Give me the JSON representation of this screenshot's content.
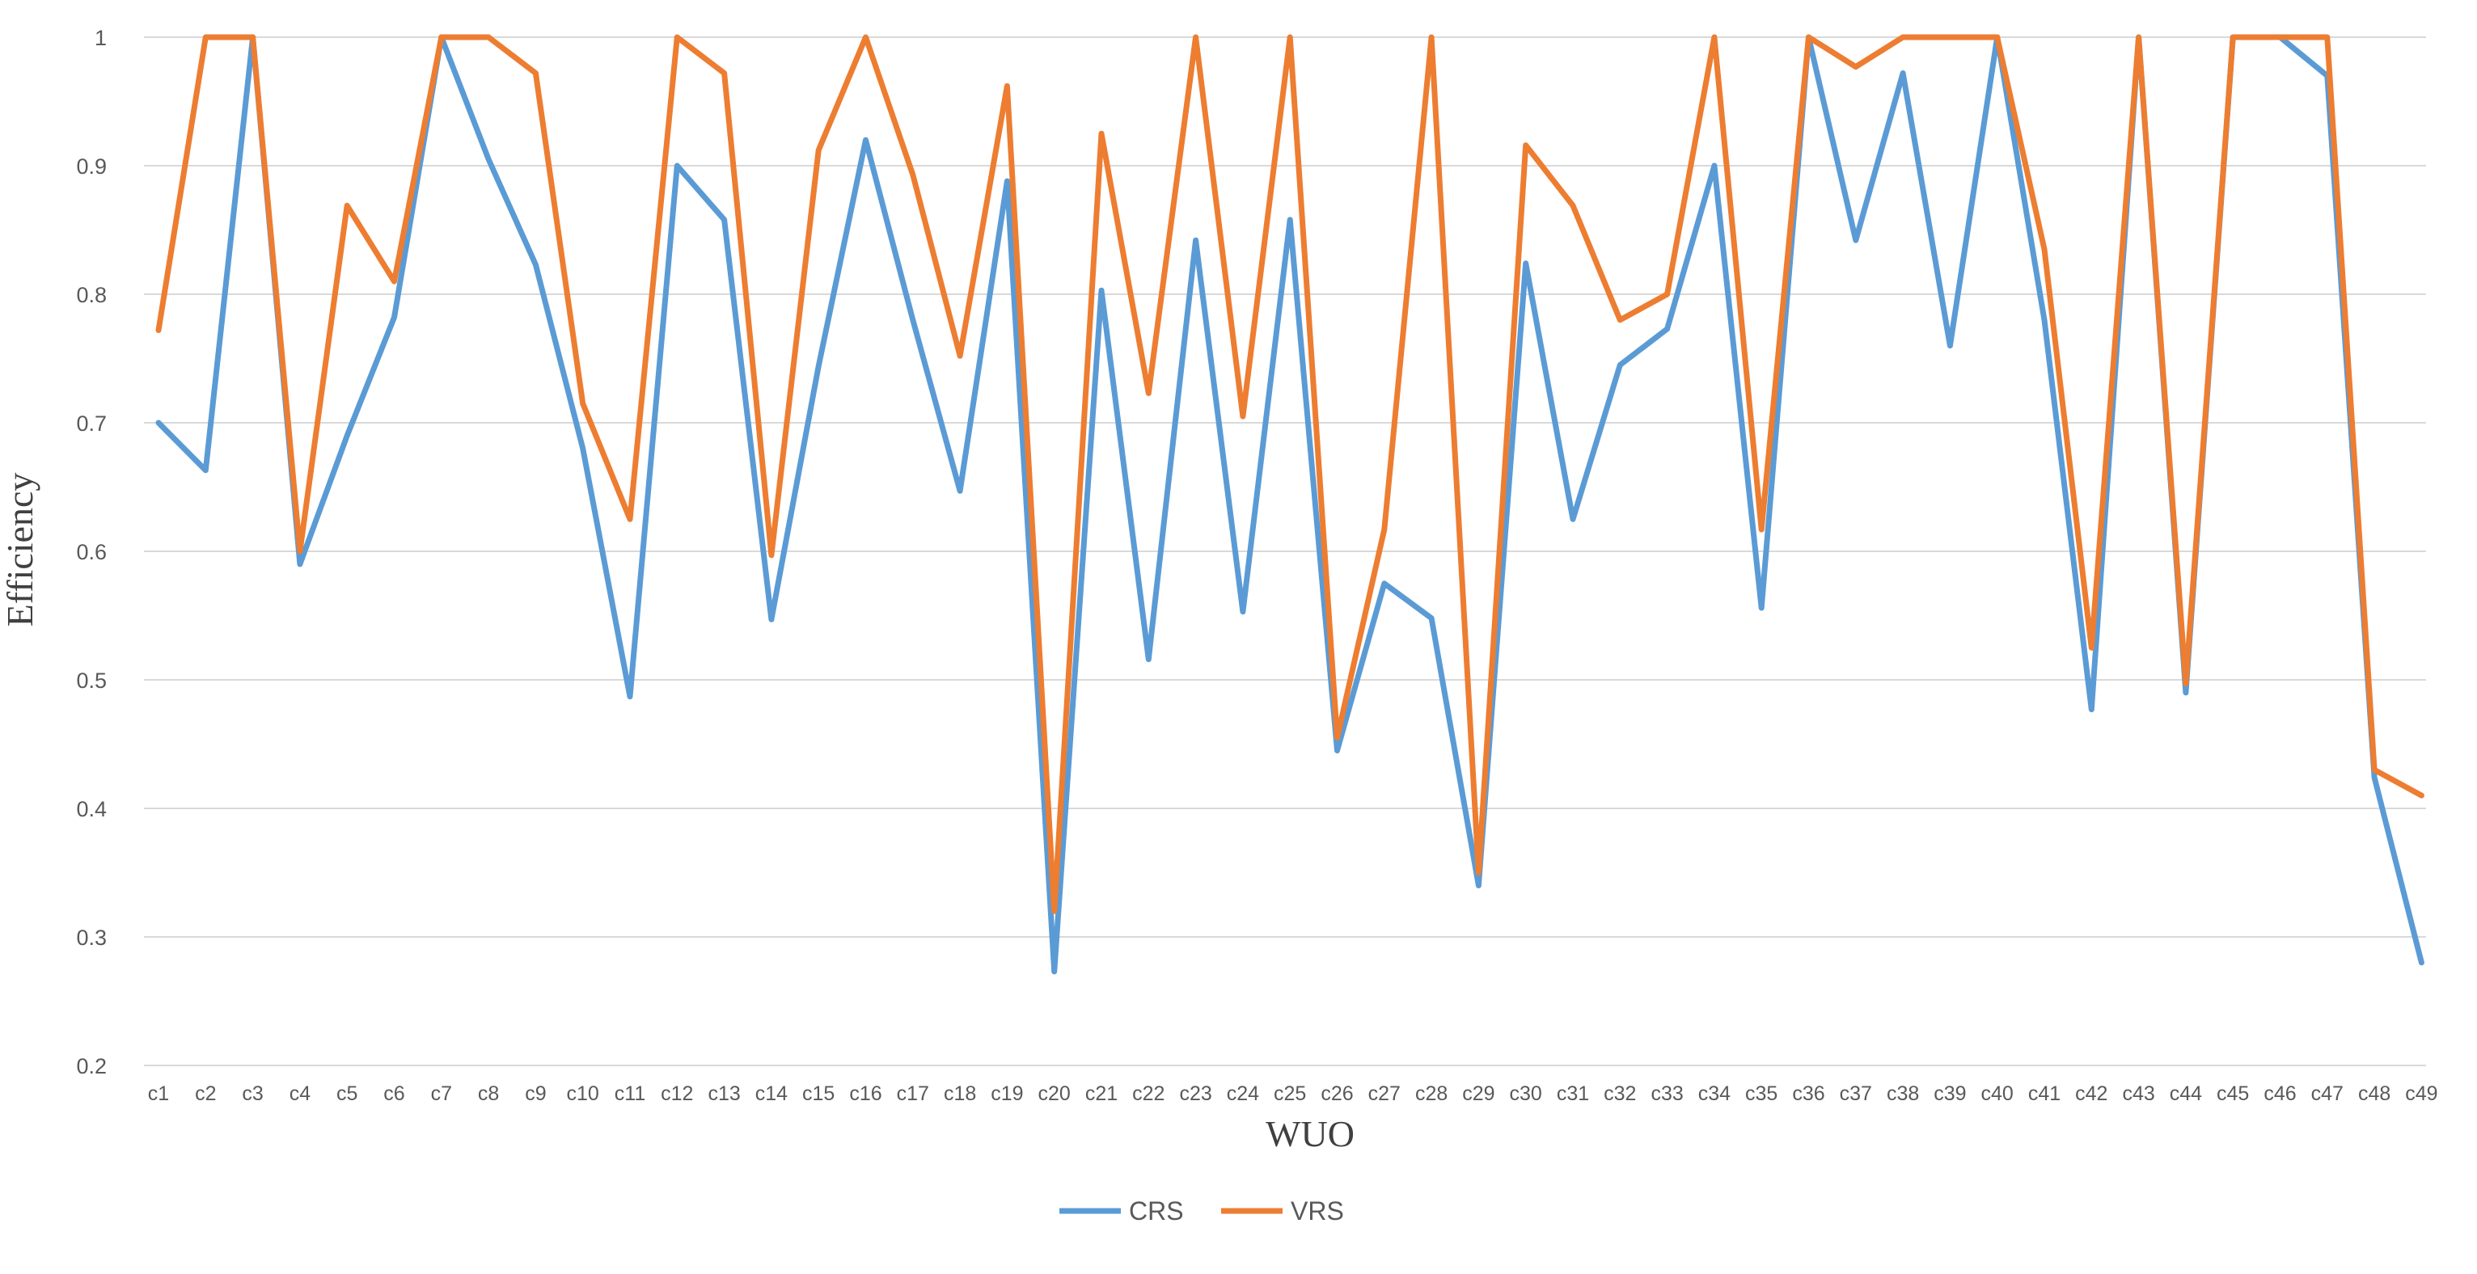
{
  "chart_data": {
    "type": "line",
    "title": "",
    "xlabel": "WUO",
    "ylabel": "Efficiency",
    "ylim": [
      0.2,
      1
    ],
    "y_ticks": [
      0.2,
      0.3,
      0.4,
      0.5,
      0.6,
      0.7,
      0.8,
      0.9,
      1
    ],
    "y_tick_labels": [
      "0.2",
      "0.3",
      "0.4",
      "0.5",
      "0.6",
      "0.7",
      "0.8",
      "0.9",
      "1"
    ],
    "grid": true,
    "legend_position": "bottom",
    "categories": [
      "c1",
      "c2",
      "c3",
      "c4",
      "c5",
      "c6",
      "c7",
      "c8",
      "c9",
      "c10",
      "c11",
      "c12",
      "c13",
      "c14",
      "c15",
      "c16",
      "c17",
      "c18",
      "c19",
      "c20",
      "c21",
      "c22",
      "c23",
      "c24",
      "c25",
      "c26",
      "c27",
      "c28",
      "c29",
      "c30",
      "c31",
      "c32",
      "c33",
      "c34",
      "c35",
      "c36",
      "c37",
      "c38",
      "c39",
      "c40",
      "c41",
      "c42",
      "c43",
      "c44",
      "c45",
      "c46",
      "c47",
      "c48",
      "c49"
    ],
    "series": [
      {
        "name": "CRS",
        "color": "#5B9BD5",
        "values": [
          0.7,
          0.663,
          1.0,
          0.59,
          0.69,
          0.782,
          1.0,
          0.905,
          0.823,
          0.68,
          0.487,
          0.9,
          0.858,
          0.547,
          0.744,
          0.92,
          0.78,
          0.647,
          0.888,
          0.273,
          0.803,
          0.516,
          0.842,
          0.553,
          0.858,
          0.445,
          0.575,
          0.548,
          0.34,
          0.824,
          0.625,
          0.745,
          0.773,
          0.9,
          0.556,
          1.0,
          0.842,
          0.972,
          0.76,
          1.0,
          0.78,
          0.477,
          1.0,
          0.49,
          1.0,
          1.0,
          0.97,
          0.424,
          0.28
        ]
      },
      {
        "name": "VRS",
        "color": "#ED7D31",
        "values": [
          0.772,
          1.0,
          1.0,
          0.6,
          0.869,
          0.81,
          1.0,
          1.0,
          0.972,
          0.715,
          0.625,
          1.0,
          0.972,
          0.597,
          0.912,
          1.0,
          0.893,
          0.752,
          0.962,
          0.32,
          0.925,
          0.723,
          1.0,
          0.705,
          1.0,
          0.455,
          0.617,
          1.0,
          0.35,
          0.916,
          0.869,
          0.78,
          0.8,
          1.0,
          0.617,
          1.0,
          0.977,
          1.0,
          1.0,
          1.0,
          0.835,
          0.525,
          1.0,
          0.497,
          1.0,
          1.0,
          1.0,
          0.43,
          0.41
        ]
      }
    ]
  }
}
